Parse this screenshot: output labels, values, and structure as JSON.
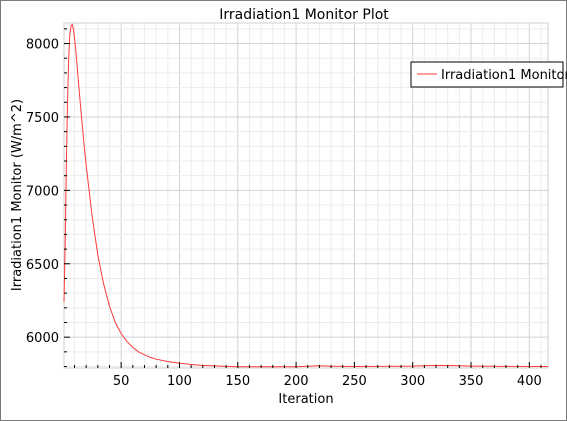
{
  "chart_data": {
    "type": "line",
    "title": "Irradiation1 Monitor Plot",
    "xlabel": "Iteration",
    "ylabel": "Irradiation1 Monitor (W/m^2)",
    "xlim": [
      1,
      416
    ],
    "ylim": [
      5790,
      8140
    ],
    "xticks": [
      50,
      100,
      150,
      200,
      250,
      300,
      350,
      400
    ],
    "yticks": [
      6000,
      6500,
      7000,
      7500,
      8000
    ],
    "grid": true,
    "legend_position": "top-right",
    "series": [
      {
        "name": "Irradiation1 Monitor",
        "color": "#ff3b3b",
        "x": [
          1,
          2,
          3,
          4,
          5,
          6,
          7,
          8,
          9,
          10,
          11,
          12,
          14,
          16,
          18,
          20,
          25,
          30,
          35,
          40,
          45,
          50,
          55,
          60,
          65,
          70,
          75,
          80,
          90,
          100,
          110,
          120,
          130,
          140,
          150,
          175,
          200,
          210,
          220,
          230,
          250,
          275,
          300,
          310,
          320,
          330,
          340,
          350,
          375,
          400,
          416
        ],
        "values": [
          6240,
          6650,
          7150,
          7600,
          7900,
          8060,
          8120,
          8130,
          8100,
          8040,
          7960,
          7870,
          7680,
          7500,
          7330,
          7170,
          6830,
          6560,
          6360,
          6210,
          6100,
          6025,
          5970,
          5930,
          5900,
          5880,
          5862,
          5850,
          5834,
          5822,
          5814,
          5808,
          5804,
          5801,
          5799,
          5798,
          5799,
          5802,
          5805,
          5802,
          5800,
          5801,
          5803,
          5806,
          5808,
          5807,
          5805,
          5803,
          5801,
          5800,
          5800
        ]
      }
    ]
  }
}
